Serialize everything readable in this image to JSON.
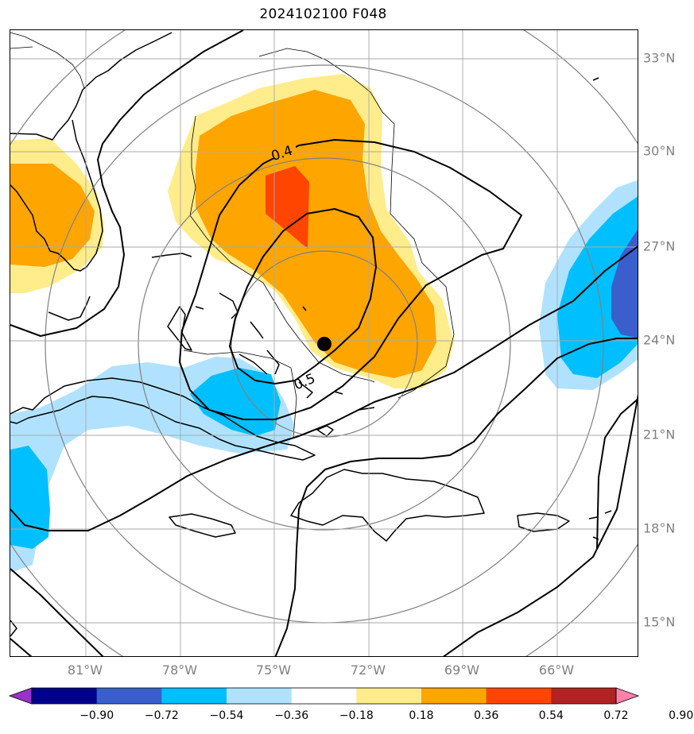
{
  "title": "2024102100 F048",
  "lat_labels": [
    "33°N",
    "30°N",
    "27°N",
    "24°N",
    "21°N",
    "18°N",
    "15°N"
  ],
  "lon_labels": [
    "81°W",
    "78°W",
    "75°W",
    "72°W",
    "69°W",
    "66°W"
  ],
  "contour_labels": [
    "0.4",
    "0.5"
  ],
  "storm_marker": "storm-center",
  "colorbar": {
    "ticks": [
      "−0.90",
      "−0.72",
      "−0.54",
      "−0.36",
      "−0.18",
      "0.18",
      "0.36",
      "0.54",
      "0.72",
      "0.90"
    ],
    "colors": [
      "#9932cc",
      "#00008b",
      "#3a5fcd",
      "#00bfff",
      "#b0e2ff",
      "#ffffff",
      "#ffec8b",
      "#ffa500",
      "#ff4500",
      "#b22222",
      "#ff82ab"
    ]
  },
  "colors": {
    "light_yellow": "#ffec8b",
    "orange": "#ffa500",
    "orange_red": "#ff4500",
    "light_blue": "#b0e2ff",
    "deep_sky_blue": "#00bfff",
    "royal_blue": "#3a5fcd",
    "grid": "#808080"
  }
}
